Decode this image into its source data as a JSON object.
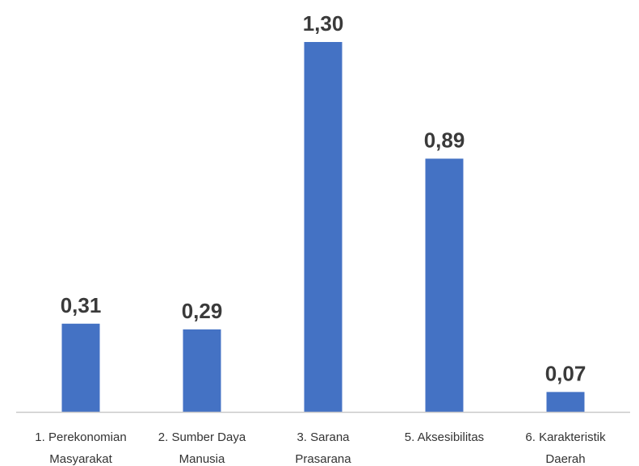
{
  "chart_data": {
    "type": "bar",
    "title": "",
    "xlabel": "",
    "ylabel": "",
    "ylim": [
      0,
      1.3
    ],
    "grid": false,
    "legend": "none",
    "bar_color": "#4472C4",
    "axis_color": "#C9C9C9",
    "categories": [
      [
        "1. Perekonomian",
        "Masyarakat"
      ],
      [
        "2. Sumber Daya",
        "Manusia"
      ],
      [
        "3. Sarana",
        "Prasarana"
      ],
      [
        "5. Aksesibilitas"
      ],
      [
        "6. Karakteristik",
        "Daerah"
      ]
    ],
    "values": [
      0.31,
      0.29,
      1.3,
      0.89,
      0.07
    ],
    "value_labels": [
      "0,31",
      "0,29",
      "1,30",
      "0,89",
      "0,07"
    ]
  }
}
